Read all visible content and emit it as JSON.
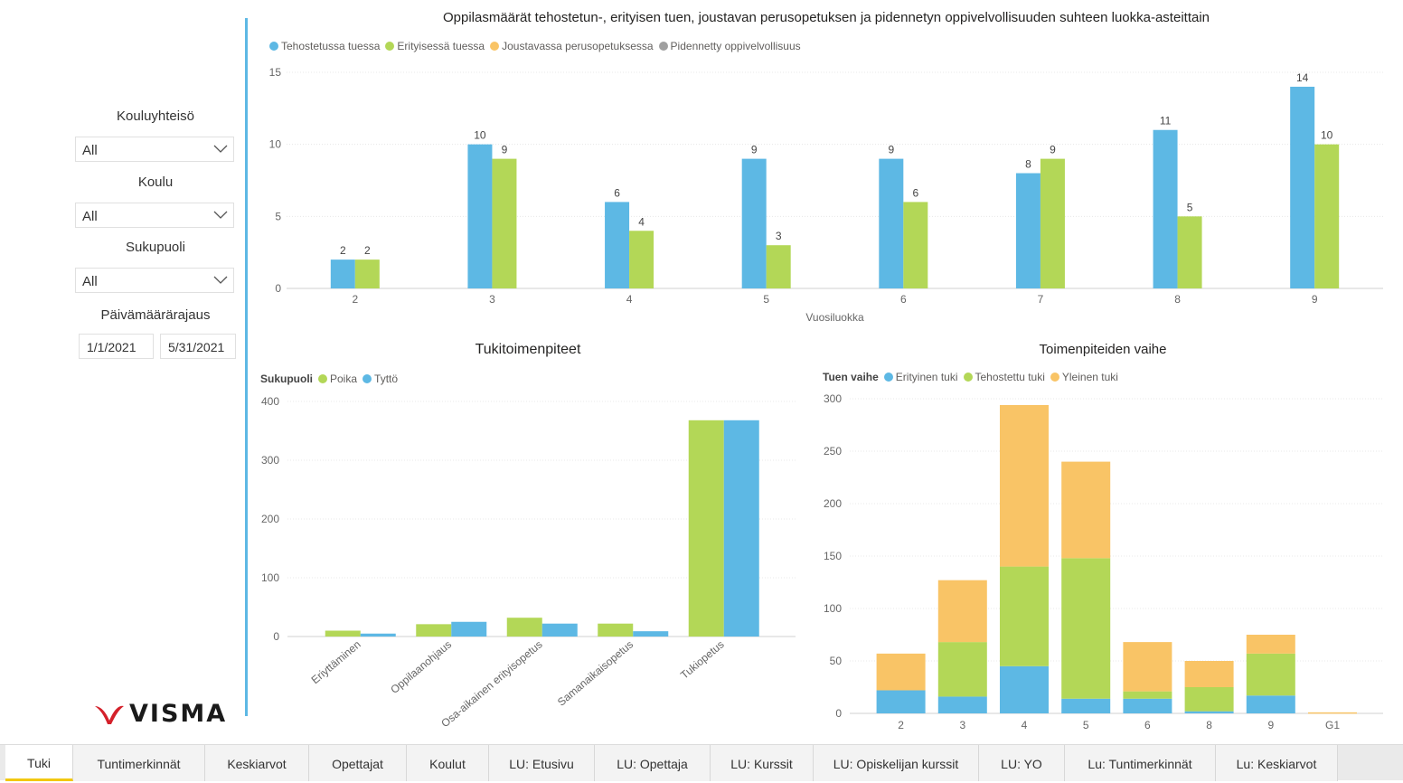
{
  "filters": {
    "kouluyhteiso": {
      "label": "Kouluyhteisö",
      "value": "All"
    },
    "koulu": {
      "label": "Koulu",
      "value": "All"
    },
    "sukupuoli": {
      "label": "Sukupuoli",
      "value": "All"
    },
    "date_range": {
      "label": "Päivämäärärajaus",
      "start": "1/1/2021",
      "end": "5/31/2021"
    }
  },
  "logo": {
    "text": "VISMA"
  },
  "colors": {
    "blue": "#5db8e4",
    "green": "#b3d757",
    "orange": "#f9c466",
    "gray": "#a0a0a0",
    "accent": "#f2c811"
  },
  "tabs": [
    {
      "label": "Tuki",
      "active": true
    },
    {
      "label": "Tuntimerkinnät"
    },
    {
      "label": "Keskiarvot"
    },
    {
      "label": "Opettajat"
    },
    {
      "label": "Koulut"
    },
    {
      "label": "LU: Etusivu"
    },
    {
      "label": "LU: Opettaja"
    },
    {
      "label": "LU: Kurssit"
    },
    {
      "label": "LU: Opiskelijan kurssit"
    },
    {
      "label": "LU: YO"
    },
    {
      "label": "Lu: Tuntimerkinnät"
    },
    {
      "label": "Lu: Keskiarvot"
    }
  ],
  "chart_data": [
    {
      "id": "oppilasmaarat",
      "type": "bar",
      "title": "Oppilasmäärät tehostetun-, erityisen tuen, joustavan perusopetuksen ja pidennetyn oppivelvollisuuden suhteen luokka-asteittain",
      "xlabel": "Vuosiluokka",
      "ylabel": "",
      "categories": [
        "2",
        "3",
        "4",
        "5",
        "6",
        "7",
        "8",
        "9"
      ],
      "yticks": [
        0,
        5,
        10,
        15
      ],
      "ylim": [
        0,
        15
      ],
      "grid": true,
      "legend": "top-left",
      "series": [
        {
          "name": "Tehostetussa tuessa",
          "color": "#5db8e4",
          "values": [
            2,
            10,
            6,
            9,
            9,
            8,
            11,
            14
          ]
        },
        {
          "name": "Erityisessä tuessa",
          "color": "#b3d757",
          "values": [
            2,
            9,
            4,
            3,
            6,
            9,
            5,
            10
          ]
        },
        {
          "name": "Joustavassa perusopetuksessa",
          "color": "#f9c466",
          "values": [
            null,
            null,
            null,
            null,
            null,
            null,
            null,
            null
          ]
        },
        {
          "name": "Pidennetty oppivelvollisuus",
          "color": "#a0a0a0",
          "values": [
            null,
            null,
            null,
            null,
            null,
            null,
            null,
            null
          ]
        }
      ]
    },
    {
      "id": "tukitoimenpiteet",
      "type": "bar",
      "title": "Tukitoimenpiteet",
      "legend_title": "Sukupuoli",
      "legend": "top-left",
      "grid": true,
      "categories": [
        "Eriyttäminen",
        "Oppilaanohjaus",
        "Osa-aikainen erityisopetus",
        "Samanaikaisopetus",
        "Tukiopetus"
      ],
      "yticks": [
        0,
        100,
        200,
        300,
        400
      ],
      "ylim": [
        0,
        400
      ],
      "series": [
        {
          "name": "Poika",
          "color": "#b3d757",
          "values": [
            10,
            21,
            32,
            22,
            368
          ]
        },
        {
          "name": "Tyttö",
          "color": "#5db8e4",
          "values": [
            5,
            25,
            22,
            9,
            368
          ]
        }
      ]
    },
    {
      "id": "toimenpiteiden-vaihe",
      "type": "bar",
      "stacked": true,
      "title": "Toimenpiteiden vaihe",
      "legend_title": "Tuen vaihe",
      "legend": "top-left",
      "grid": true,
      "categories": [
        "2",
        "3",
        "4",
        "5",
        "6",
        "8",
        "9",
        "G1"
      ],
      "yticks": [
        0,
        50,
        100,
        150,
        200,
        250,
        300
      ],
      "ylim": [
        0,
        300
      ],
      "series": [
        {
          "name": "Erityinen tuki",
          "color": "#5db8e4",
          "values": [
            22,
            16,
            45,
            14,
            14,
            2,
            17,
            0
          ]
        },
        {
          "name": "Tehostettu tuki",
          "color": "#b3d757",
          "values": [
            0,
            52,
            95,
            134,
            7,
            23,
            40,
            0
          ]
        },
        {
          "name": "Yleinen tuki",
          "color": "#f9c466",
          "values": [
            35,
            59,
            154,
            92,
            47,
            25,
            18,
            1
          ]
        }
      ]
    }
  ]
}
